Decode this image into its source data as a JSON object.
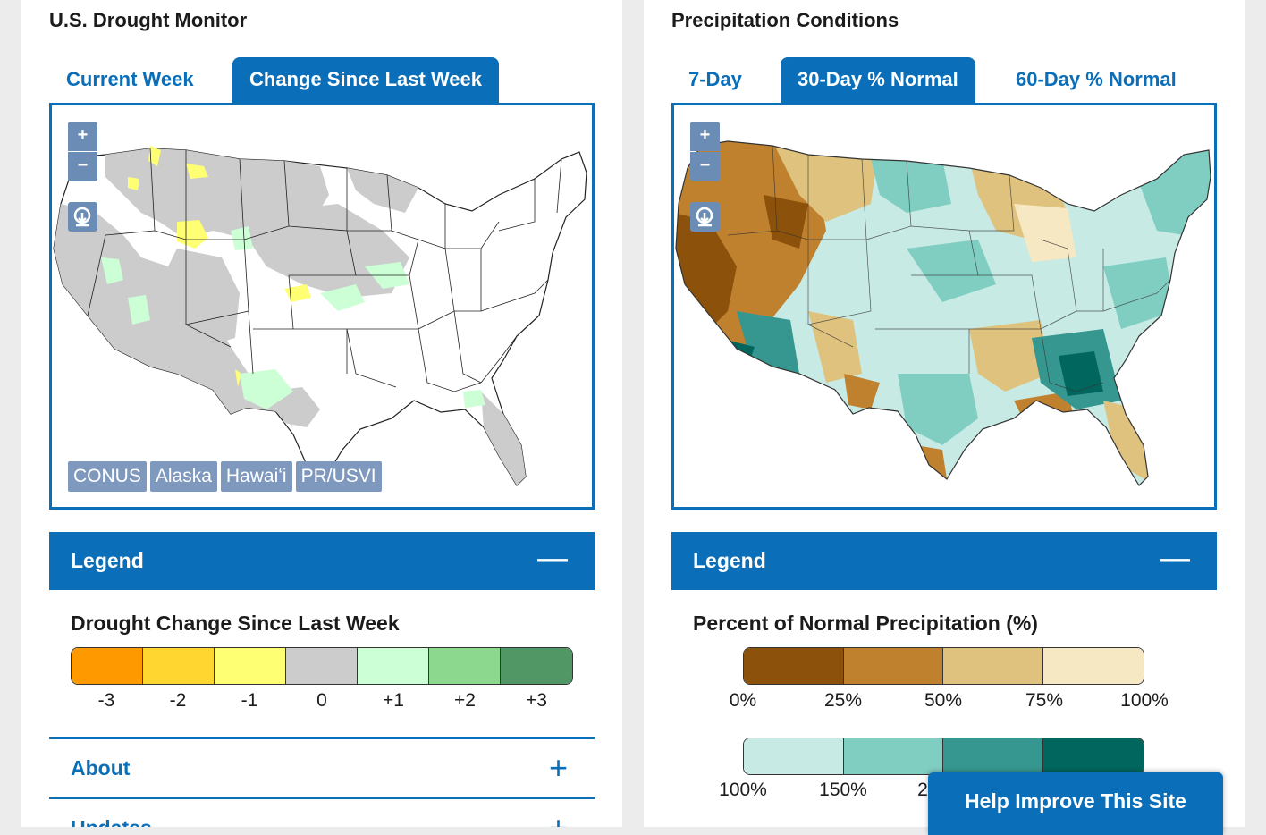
{
  "left": {
    "title": "U.S. Drought Monitor",
    "tabs": [
      {
        "label": "Current Week",
        "active": false
      },
      {
        "label": "Change Since Last Week",
        "active": true
      }
    ],
    "map_controls": {
      "zoom_in": "+",
      "zoom_out": "−",
      "download_icon": "download-icon"
    },
    "regions": [
      "CONUS",
      "Alaska",
      "Hawaiʻi",
      "PR/USVI"
    ],
    "legend": {
      "header": "Legend",
      "toggle": "—",
      "title": "Drought Change Since Last Week",
      "scale": [
        {
          "label": "-3",
          "color": "#ff9900"
        },
        {
          "label": "-2",
          "color": "#ffd530"
        },
        {
          "label": "-1",
          "color": "#ffff73"
        },
        {
          "label": "0",
          "color": "#cccccc"
        },
        {
          "label": "+1",
          "color": "#ccffd6"
        },
        {
          "label": "+2",
          "color": "#8cd88e"
        },
        {
          "label": "+3",
          "color": "#519665"
        }
      ]
    },
    "accordions": [
      {
        "label": "About",
        "toggle": "+"
      },
      {
        "label": "Updates",
        "toggle": "+"
      }
    ]
  },
  "right": {
    "title": "Precipitation Conditions",
    "tabs": [
      {
        "label": "7-Day",
        "active": false
      },
      {
        "label": "30-Day % Normal",
        "active": true
      },
      {
        "label": "60-Day % Normal",
        "active": false
      }
    ],
    "map_controls": {
      "zoom_in": "+",
      "zoom_out": "−",
      "download_icon": "download-icon"
    },
    "legend": {
      "header": "Legend",
      "toggle": "—",
      "title": "Percent of Normal Precipitation (%)",
      "scale_dry": [
        {
          "color": "#8c510a"
        },
        {
          "color": "#bf812d"
        },
        {
          "color": "#dfc27d"
        },
        {
          "color": "#f6e8c3"
        }
      ],
      "ticks_dry": [
        "0%",
        "25%",
        "50%",
        "75%",
        "100%"
      ],
      "scale_wet": [
        {
          "color": "#c7eae5"
        },
        {
          "color": "#80cdc1"
        },
        {
          "color": "#35978f"
        },
        {
          "color": "#01665e"
        }
      ],
      "ticks_wet": [
        "100%",
        "150%",
        "2"
      ]
    }
  },
  "help_button": "Help Improve This Site"
}
